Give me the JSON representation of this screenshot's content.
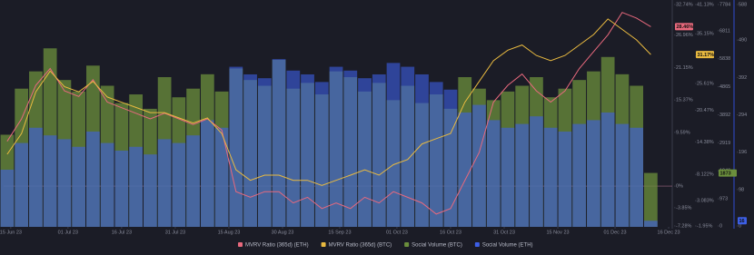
{
  "chart_data": {
    "type": "combo",
    "x": [
      "2023-06-14",
      "2023-06-18",
      "2023-06-22",
      "2023-06-26",
      "2023-06-30",
      "2023-07-04",
      "2023-07-08",
      "2023-07-12",
      "2023-07-16",
      "2023-07-20",
      "2023-07-24",
      "2023-07-28",
      "2023-08-01",
      "2023-08-05",
      "2023-08-09",
      "2023-08-13",
      "2023-08-17",
      "2023-08-21",
      "2023-08-25",
      "2023-08-29",
      "2023-09-02",
      "2023-09-06",
      "2023-09-10",
      "2023-09-14",
      "2023-09-18",
      "2023-09-22",
      "2023-09-26",
      "2023-09-30",
      "2023-10-04",
      "2023-10-08",
      "2023-10-12",
      "2023-10-16",
      "2023-10-20",
      "2023-10-24",
      "2023-10-28",
      "2023-11-01",
      "2023-11-05",
      "2023-11-09",
      "2023-11-13",
      "2023-11-17",
      "2023-11-21",
      "2023-11-25",
      "2023-11-29",
      "2023-12-03",
      "2023-12-07",
      "2023-12-11"
    ],
    "xlim": [
      "2023-06-13",
      "2023-12-17"
    ],
    "xticks": [
      {
        "value": "2023-06-15",
        "label": "15 Jun 23"
      },
      {
        "value": "2023-07-01",
        "label": "01 Jul 23"
      },
      {
        "value": "2023-07-16",
        "label": "16 Jul 23"
      },
      {
        "value": "2023-07-31",
        "label": "31 Jul 23"
      },
      {
        "value": "2023-08-15",
        "label": "15 Aug 23"
      },
      {
        "value": "2023-08-30",
        "label": "30 Aug 23"
      },
      {
        "value": "2023-09-15",
        "label": "15 Sep 23"
      },
      {
        "value": "2023-10-01",
        "label": "01 Oct 23"
      },
      {
        "value": "2023-10-16",
        "label": "16 Oct 23"
      },
      {
        "value": "2023-10-31",
        "label": "31 Oct 23"
      },
      {
        "value": "2023-11-15",
        "label": "15 Nov 23"
      },
      {
        "value": "2023-12-01",
        "label": "01 Dec 23"
      },
      {
        "value": "2023-12-16",
        "label": "16 Dec 23"
      }
    ],
    "series": [
      {
        "name": "Social Volume (BTC)",
        "type": "bar",
        "color": "#6b8f3c",
        "values": [
          3200,
          4800,
          5400,
          6200,
          5100,
          4700,
          5600,
          4900,
          4300,
          4600,
          4100,
          5200,
          4500,
          4800,
          5300,
          4700,
          5500,
          5100,
          4900,
          5800,
          4800,
          5000,
          4600,
          5400,
          5200,
          4700,
          5000,
          4400,
          4900,
          4300,
          4600,
          4100,
          5200,
          4800,
          4400,
          4700,
          4900,
          5200,
          4500,
          4800,
          5100,
          5400,
          5900,
          5300,
          4900,
          1873
        ],
        "ylim": [
          0,
          7784
        ],
        "yticks": [
          0,
          973,
          1946,
          2919,
          3892,
          4865,
          5838,
          6811,
          7784
        ]
      },
      {
        "name": "Social Volume (ETH)",
        "type": "bar",
        "color": "#3d5fe6",
        "values": [
          150,
          220,
          260,
          240,
          230,
          210,
          250,
          220,
          200,
          210,
          190,
          230,
          220,
          240,
          280,
          260,
          420,
          400,
          390,
          440,
          410,
          400,
          380,
          420,
          410,
          390,
          400,
          430,
          420,
          400,
          380,
          360,
          300,
          320,
          280,
          260,
          270,
          290,
          260,
          250,
          270,
          280,
          300,
          270,
          260,
          16
        ],
        "ylim": [
          0,
          588
        ],
        "yticks": [
          0,
          98,
          196,
          294,
          392,
          490,
          588
        ]
      },
      {
        "name": "MVRV Ratio (365d) (ETH)",
        "type": "line",
        "color": "#e8697d",
        "values": [
          8,
          12,
          18,
          21,
          17,
          16,
          19,
          15,
          14,
          13,
          12,
          13,
          12,
          11,
          12,
          10,
          -1,
          -2,
          -1,
          -1,
          -3,
          -2,
          -4,
          -3,
          -4,
          -2,
          -3,
          -1,
          -2,
          -3,
          -5,
          -4,
          1,
          6,
          15,
          18,
          20,
          17,
          15,
          17,
          21,
          24,
          27,
          31,
          30,
          28.46
        ],
        "value_labels": [
          null,
          null,
          null,
          null,
          null,
          null,
          null,
          null,
          null,
          null,
          null,
          null,
          null,
          null,
          null,
          null,
          null,
          null,
          null,
          null,
          null,
          null,
          null,
          null,
          null,
          null,
          null,
          null,
          null,
          null,
          null,
          null,
          null,
          null,
          null,
          null,
          null,
          null,
          null,
          null,
          null,
          null,
          null,
          null,
          null,
          "28.46%"
        ],
        "ylim": [
          -7.28,
          32.74
        ],
        "yticks": [
          {
            "value": 32.74,
            "label": "32.74%"
          },
          {
            "value": 26.96,
            "label": "26.96%"
          },
          {
            "value": 21.15,
            "label": "21.15%"
          },
          {
            "value": 15.37,
            "label": "15.37%"
          },
          {
            "value": 9.59,
            "label": "9.59%"
          },
          {
            "value": 0,
            "label": "0%"
          },
          {
            "value": -3.85,
            "label": "-3.85%"
          },
          {
            "value": -7.28,
            "label": "-7.28%"
          }
        ]
      },
      {
        "name": "MVRV Ratio (365d) (BTC)",
        "type": "line",
        "color": "#e9ba40",
        "values": [
          12,
          16,
          24,
          28,
          25,
          24,
          26,
          23,
          22,
          21,
          20,
          20,
          19,
          18,
          19,
          16,
          9,
          7,
          8,
          8,
          7,
          7,
          6,
          7,
          8,
          9,
          8,
          10,
          11,
          14,
          15,
          16,
          22,
          26,
          30,
          32,
          33,
          31,
          30,
          31,
          33,
          35,
          38,
          36,
          34,
          31.17
        ],
        "value_labels": [
          null,
          null,
          null,
          null,
          null,
          null,
          null,
          null,
          null,
          null,
          null,
          null,
          null,
          null,
          null,
          null,
          null,
          null,
          null,
          null,
          null,
          null,
          null,
          null,
          null,
          null,
          null,
          null,
          null,
          null,
          null,
          null,
          null,
          null,
          null,
          null,
          null,
          null,
          null,
          null,
          null,
          null,
          null,
          null,
          null,
          "31.17%"
        ],
        "ylim": [
          -1.95,
          41.13
        ],
        "yticks": [
          {
            "value": 41.13,
            "label": "41.13%"
          },
          {
            "value": 35.15,
            "label": "35.15%"
          },
          {
            "value": 30.86,
            "label": "30.86%"
          },
          {
            "value": 25.61,
            "label": "25.61%"
          },
          {
            "value": 20.47,
            "label": "20.47%"
          },
          {
            "value": 14.38,
            "label": "14.38%"
          },
          {
            "value": 8.122,
            "label": "8.122%"
          },
          {
            "value": 3.083,
            "label": "3.083%"
          },
          {
            "value": -1.95,
            "label": "-1.95%"
          }
        ]
      }
    ],
    "legend_order": [
      2,
      3,
      0,
      1
    ]
  }
}
